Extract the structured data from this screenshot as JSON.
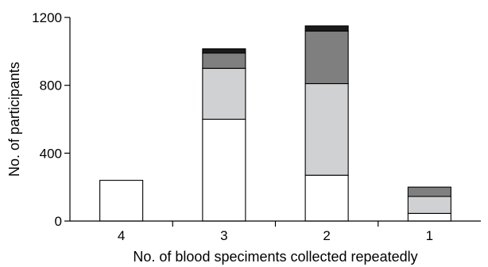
{
  "chart_data": {
    "type": "bar",
    "stacked": true,
    "title": "",
    "xlabel": "No. of blood speciments collected repeatedly",
    "ylabel": "No. of participants",
    "categories": [
      "4",
      "3",
      "2",
      "1"
    ],
    "ylim": [
      0,
      1200
    ],
    "yticks": [
      0,
      400,
      800,
      1200
    ],
    "grid": false,
    "legend": "none",
    "series": [
      {
        "color": "#ffffff",
        "values": [
          240,
          600,
          270,
          45
        ]
      },
      {
        "color": "#d0d1d3",
        "values": [
          0,
          300,
          540,
          100
        ]
      },
      {
        "color": "#7f7f7f",
        "values": [
          0,
          90,
          310,
          55
        ]
      },
      {
        "color": "#1a1a1a",
        "values": [
          0,
          25,
          30,
          0
        ]
      }
    ]
  }
}
